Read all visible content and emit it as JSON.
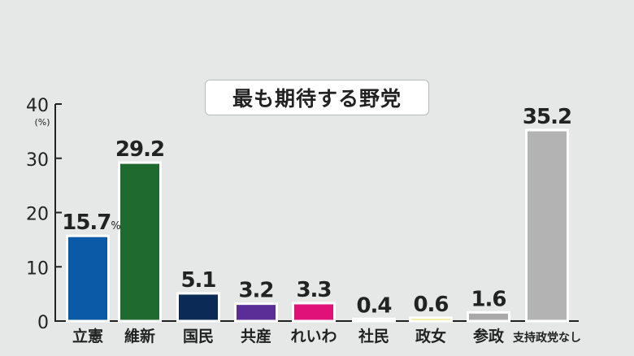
{
  "chart_data": {
    "type": "bar",
    "title": "最も期待する野党",
    "unit_label": "(%)",
    "ylim": [
      0,
      40
    ],
    "yticks": [
      "0",
      "10",
      "20",
      "30",
      "40"
    ],
    "grid": false,
    "categories": [
      "立憲",
      "維新",
      "国民",
      "共産",
      "れいわ",
      "社民",
      "政女",
      "参政",
      "支持政党なし"
    ],
    "values": [
      15.7,
      29.2,
      5.1,
      3.2,
      3.3,
      0.4,
      0.6,
      1.6,
      35.2
    ],
    "value_labels": [
      "15.7",
      "29.2",
      "5.1",
      "3.2",
      "3.3",
      "0.4",
      "0.6",
      "1.6",
      "35.2"
    ],
    "value_suffix_first": "%",
    "colors": [
      "#0a5aa8",
      "#1f6a2e",
      "#0b2a55",
      "#5b2e97",
      "#e0127a",
      "#b48ab8",
      "#e8e05a",
      "#a9a9a9",
      "#b3b3b3"
    ]
  }
}
